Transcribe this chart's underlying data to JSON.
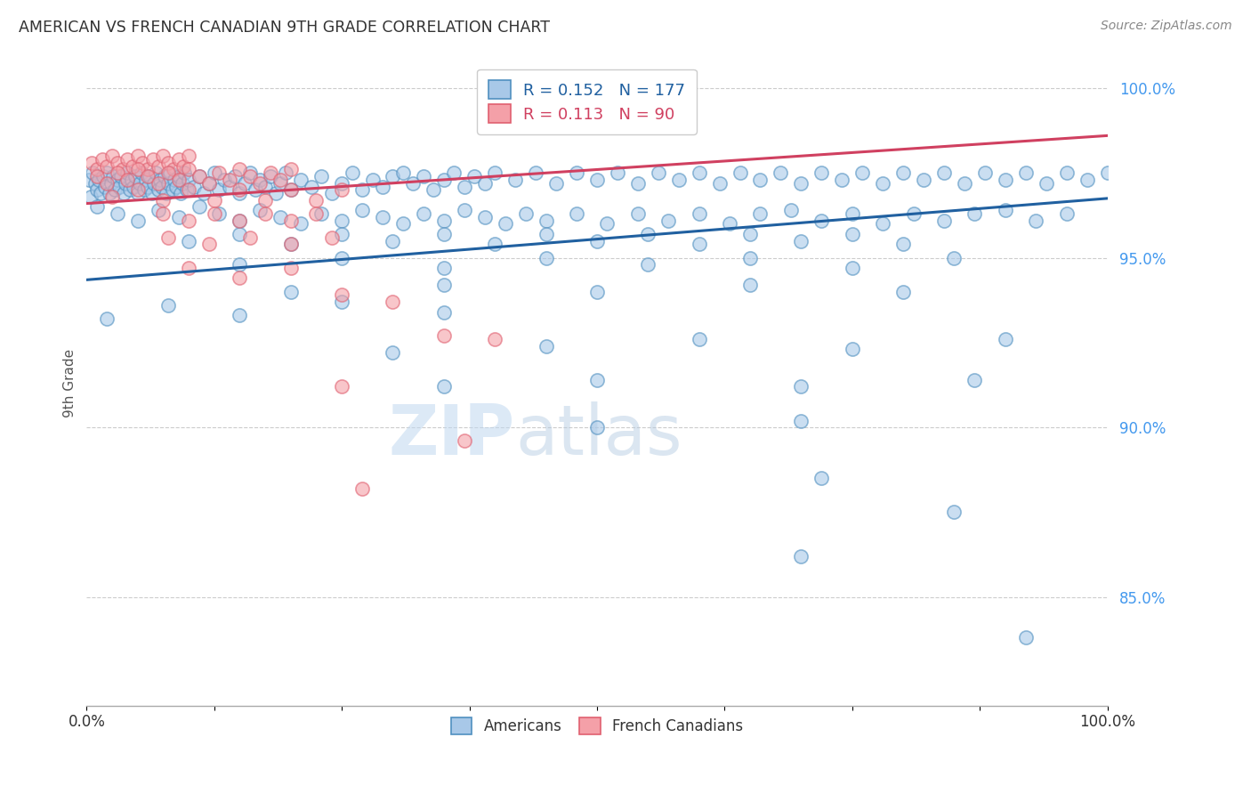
{
  "title": "AMERICAN VS FRENCH CANADIAN 9TH GRADE CORRELATION CHART",
  "source": "Source: ZipAtlas.com",
  "ylabel": "9th Grade",
  "right_yticks": [
    "100.0%",
    "95.0%",
    "90.0%",
    "85.0%"
  ],
  "right_ytick_vals": [
    1.0,
    0.95,
    0.9,
    0.85
  ],
  "legend_blue_label": "Americans",
  "legend_pink_label": "French Canadians",
  "R_blue": 0.152,
  "N_blue": 177,
  "R_pink": 0.113,
  "N_pink": 90,
  "blue_color": "#a8c8e8",
  "pink_color": "#f4a0a8",
  "blue_edge_color": "#5090c0",
  "pink_edge_color": "#e06070",
  "blue_line_color": "#2060a0",
  "pink_line_color": "#d04060",
  "watermark_zip": "ZIP",
  "watermark_atlas": "atlas",
  "xmin": 0.0,
  "xmax": 1.0,
  "ymin": 0.818,
  "ymax": 1.008,
  "blue_trend_x": [
    0.0,
    1.0
  ],
  "blue_trend_y": [
    0.9435,
    0.9675
  ],
  "pink_trend_x": [
    0.0,
    1.0
  ],
  "pink_trend_y": [
    0.966,
    0.986
  ],
  "blue_scatter": [
    [
      0.002,
      0.973
    ],
    [
      0.004,
      0.968
    ],
    [
      0.006,
      0.975
    ],
    [
      0.008,
      0.972
    ],
    [
      0.01,
      0.97
    ],
    [
      0.012,
      0.973
    ],
    [
      0.014,
      0.969
    ],
    [
      0.016,
      0.974
    ],
    [
      0.018,
      0.971
    ],
    [
      0.02,
      0.975
    ],
    [
      0.022,
      0.969
    ],
    [
      0.024,
      0.972
    ],
    [
      0.026,
      0.974
    ],
    [
      0.028,
      0.97
    ],
    [
      0.03,
      0.973
    ],
    [
      0.032,
      0.971
    ],
    [
      0.034,
      0.974
    ],
    [
      0.036,
      0.969
    ],
    [
      0.038,
      0.972
    ],
    [
      0.04,
      0.975
    ],
    [
      0.042,
      0.97
    ],
    [
      0.044,
      0.973
    ],
    [
      0.046,
      0.971
    ],
    [
      0.048,
      0.974
    ],
    [
      0.05,
      0.969
    ],
    [
      0.052,
      0.972
    ],
    [
      0.054,
      0.975
    ],
    [
      0.056,
      0.97
    ],
    [
      0.058,
      0.973
    ],
    [
      0.06,
      0.971
    ],
    [
      0.062,
      0.974
    ],
    [
      0.064,
      0.969
    ],
    [
      0.066,
      0.972
    ],
    [
      0.068,
      0.975
    ],
    [
      0.07,
      0.97
    ],
    [
      0.072,
      0.973
    ],
    [
      0.074,
      0.971
    ],
    [
      0.076,
      0.974
    ],
    [
      0.078,
      0.969
    ],
    [
      0.08,
      0.972
    ],
    [
      0.082,
      0.975
    ],
    [
      0.084,
      0.97
    ],
    [
      0.086,
      0.973
    ],
    [
      0.088,
      0.971
    ],
    [
      0.09,
      0.974
    ],
    [
      0.092,
      0.969
    ],
    [
      0.094,
      0.972
    ],
    [
      0.096,
      0.975
    ],
    [
      0.098,
      0.97
    ],
    [
      0.1,
      0.973
    ],
    [
      0.105,
      0.971
    ],
    [
      0.11,
      0.974
    ],
    [
      0.115,
      0.969
    ],
    [
      0.12,
      0.972
    ],
    [
      0.125,
      0.975
    ],
    [
      0.13,
      0.97
    ],
    [
      0.135,
      0.973
    ],
    [
      0.14,
      0.971
    ],
    [
      0.145,
      0.974
    ],
    [
      0.15,
      0.969
    ],
    [
      0.155,
      0.972
    ],
    [
      0.16,
      0.975
    ],
    [
      0.165,
      0.97
    ],
    [
      0.17,
      0.973
    ],
    [
      0.175,
      0.971
    ],
    [
      0.18,
      0.974
    ],
    [
      0.185,
      0.969
    ],
    [
      0.19,
      0.972
    ],
    [
      0.195,
      0.975
    ],
    [
      0.2,
      0.97
    ],
    [
      0.21,
      0.973
    ],
    [
      0.22,
      0.971
    ],
    [
      0.23,
      0.974
    ],
    [
      0.24,
      0.969
    ],
    [
      0.25,
      0.972
    ],
    [
      0.26,
      0.975
    ],
    [
      0.27,
      0.97
    ],
    [
      0.28,
      0.973
    ],
    [
      0.29,
      0.971
    ],
    [
      0.3,
      0.974
    ],
    [
      0.31,
      0.975
    ],
    [
      0.32,
      0.972
    ],
    [
      0.33,
      0.974
    ],
    [
      0.34,
      0.97
    ],
    [
      0.35,
      0.973
    ],
    [
      0.36,
      0.975
    ],
    [
      0.37,
      0.971
    ],
    [
      0.38,
      0.974
    ],
    [
      0.39,
      0.972
    ],
    [
      0.4,
      0.975
    ],
    [
      0.42,
      0.973
    ],
    [
      0.44,
      0.975
    ],
    [
      0.46,
      0.972
    ],
    [
      0.48,
      0.975
    ],
    [
      0.5,
      0.973
    ],
    [
      0.52,
      0.975
    ],
    [
      0.54,
      0.972
    ],
    [
      0.56,
      0.975
    ],
    [
      0.58,
      0.973
    ],
    [
      0.6,
      0.975
    ],
    [
      0.62,
      0.972
    ],
    [
      0.64,
      0.975
    ],
    [
      0.66,
      0.973
    ],
    [
      0.68,
      0.975
    ],
    [
      0.7,
      0.972
    ],
    [
      0.72,
      0.975
    ],
    [
      0.74,
      0.973
    ],
    [
      0.76,
      0.975
    ],
    [
      0.78,
      0.972
    ],
    [
      0.8,
      0.975
    ],
    [
      0.82,
      0.973
    ],
    [
      0.84,
      0.975
    ],
    [
      0.86,
      0.972
    ],
    [
      0.88,
      0.975
    ],
    [
      0.9,
      0.973
    ],
    [
      0.92,
      0.975
    ],
    [
      0.94,
      0.972
    ],
    [
      0.96,
      0.975
    ],
    [
      0.98,
      0.973
    ],
    [
      1.0,
      0.975
    ],
    [
      0.01,
      0.965
    ],
    [
      0.03,
      0.963
    ],
    [
      0.05,
      0.961
    ],
    [
      0.07,
      0.964
    ],
    [
      0.09,
      0.962
    ],
    [
      0.11,
      0.965
    ],
    [
      0.13,
      0.963
    ],
    [
      0.15,
      0.961
    ],
    [
      0.17,
      0.964
    ],
    [
      0.19,
      0.962
    ],
    [
      0.21,
      0.96
    ],
    [
      0.23,
      0.963
    ],
    [
      0.25,
      0.961
    ],
    [
      0.27,
      0.964
    ],
    [
      0.29,
      0.962
    ],
    [
      0.31,
      0.96
    ],
    [
      0.33,
      0.963
    ],
    [
      0.35,
      0.961
    ],
    [
      0.37,
      0.964
    ],
    [
      0.39,
      0.962
    ],
    [
      0.41,
      0.96
    ],
    [
      0.43,
      0.963
    ],
    [
      0.45,
      0.961
    ],
    [
      0.48,
      0.963
    ],
    [
      0.51,
      0.96
    ],
    [
      0.54,
      0.963
    ],
    [
      0.57,
      0.961
    ],
    [
      0.6,
      0.963
    ],
    [
      0.63,
      0.96
    ],
    [
      0.66,
      0.963
    ],
    [
      0.69,
      0.964
    ],
    [
      0.72,
      0.961
    ],
    [
      0.75,
      0.963
    ],
    [
      0.78,
      0.96
    ],
    [
      0.81,
      0.963
    ],
    [
      0.84,
      0.961
    ],
    [
      0.87,
      0.963
    ],
    [
      0.9,
      0.964
    ],
    [
      0.93,
      0.961
    ],
    [
      0.96,
      0.963
    ],
    [
      0.1,
      0.955
    ],
    [
      0.15,
      0.957
    ],
    [
      0.2,
      0.954
    ],
    [
      0.25,
      0.957
    ],
    [
      0.3,
      0.955
    ],
    [
      0.35,
      0.957
    ],
    [
      0.4,
      0.954
    ],
    [
      0.45,
      0.957
    ],
    [
      0.5,
      0.955
    ],
    [
      0.55,
      0.957
    ],
    [
      0.6,
      0.954
    ],
    [
      0.65,
      0.957
    ],
    [
      0.7,
      0.955
    ],
    [
      0.75,
      0.957
    ],
    [
      0.8,
      0.954
    ],
    [
      0.15,
      0.948
    ],
    [
      0.25,
      0.95
    ],
    [
      0.35,
      0.947
    ],
    [
      0.45,
      0.95
    ],
    [
      0.55,
      0.948
    ],
    [
      0.65,
      0.95
    ],
    [
      0.75,
      0.947
    ],
    [
      0.85,
      0.95
    ],
    [
      0.2,
      0.94
    ],
    [
      0.35,
      0.942
    ],
    [
      0.5,
      0.94
    ],
    [
      0.65,
      0.942
    ],
    [
      0.8,
      0.94
    ],
    [
      0.02,
      0.932
    ],
    [
      0.08,
      0.936
    ],
    [
      0.15,
      0.933
    ],
    [
      0.25,
      0.937
    ],
    [
      0.35,
      0.934
    ],
    [
      0.3,
      0.922
    ],
    [
      0.45,
      0.924
    ],
    [
      0.6,
      0.926
    ],
    [
      0.75,
      0.923
    ],
    [
      0.9,
      0.926
    ],
    [
      0.35,
      0.912
    ],
    [
      0.5,
      0.914
    ],
    [
      0.7,
      0.912
    ],
    [
      0.87,
      0.914
    ],
    [
      0.5,
      0.9
    ],
    [
      0.7,
      0.902
    ],
    [
      0.72,
      0.885
    ],
    [
      0.85,
      0.875
    ],
    [
      0.7,
      0.862
    ],
    [
      0.92,
      0.838
    ]
  ],
  "pink_scatter": [
    [
      0.005,
      0.978
    ],
    [
      0.01,
      0.976
    ],
    [
      0.015,
      0.979
    ],
    [
      0.02,
      0.977
    ],
    [
      0.025,
      0.98
    ],
    [
      0.03,
      0.978
    ],
    [
      0.035,
      0.976
    ],
    [
      0.04,
      0.979
    ],
    [
      0.045,
      0.977
    ],
    [
      0.05,
      0.98
    ],
    [
      0.055,
      0.978
    ],
    [
      0.06,
      0.976
    ],
    [
      0.065,
      0.979
    ],
    [
      0.07,
      0.977
    ],
    [
      0.075,
      0.98
    ],
    [
      0.08,
      0.978
    ],
    [
      0.085,
      0.976
    ],
    [
      0.09,
      0.979
    ],
    [
      0.095,
      0.977
    ],
    [
      0.1,
      0.98
    ],
    [
      0.01,
      0.974
    ],
    [
      0.02,
      0.972
    ],
    [
      0.03,
      0.975
    ],
    [
      0.04,
      0.973
    ],
    [
      0.05,
      0.976
    ],
    [
      0.06,
      0.974
    ],
    [
      0.07,
      0.972
    ],
    [
      0.08,
      0.975
    ],
    [
      0.09,
      0.973
    ],
    [
      0.1,
      0.976
    ],
    [
      0.11,
      0.974
    ],
    [
      0.12,
      0.972
    ],
    [
      0.13,
      0.975
    ],
    [
      0.14,
      0.973
    ],
    [
      0.15,
      0.976
    ],
    [
      0.16,
      0.974
    ],
    [
      0.17,
      0.972
    ],
    [
      0.18,
      0.975
    ],
    [
      0.19,
      0.973
    ],
    [
      0.2,
      0.976
    ],
    [
      0.025,
      0.968
    ],
    [
      0.05,
      0.97
    ],
    [
      0.075,
      0.967
    ],
    [
      0.1,
      0.97
    ],
    [
      0.125,
      0.967
    ],
    [
      0.15,
      0.97
    ],
    [
      0.175,
      0.967
    ],
    [
      0.2,
      0.97
    ],
    [
      0.225,
      0.967
    ],
    [
      0.25,
      0.97
    ],
    [
      0.075,
      0.963
    ],
    [
      0.1,
      0.961
    ],
    [
      0.125,
      0.963
    ],
    [
      0.15,
      0.961
    ],
    [
      0.175,
      0.963
    ],
    [
      0.2,
      0.961
    ],
    [
      0.225,
      0.963
    ],
    [
      0.08,
      0.956
    ],
    [
      0.12,
      0.954
    ],
    [
      0.16,
      0.956
    ],
    [
      0.2,
      0.954
    ],
    [
      0.24,
      0.956
    ],
    [
      0.1,
      0.947
    ],
    [
      0.15,
      0.944
    ],
    [
      0.2,
      0.947
    ],
    [
      0.25,
      0.939
    ],
    [
      0.3,
      0.937
    ],
    [
      0.35,
      0.927
    ],
    [
      0.4,
      0.926
    ],
    [
      0.25,
      0.912
    ],
    [
      0.37,
      0.896
    ],
    [
      0.27,
      0.882
    ]
  ]
}
